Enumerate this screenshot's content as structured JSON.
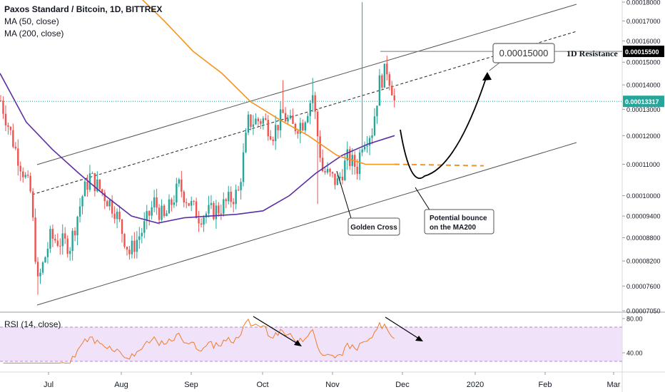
{
  "header": {
    "title": "Paxos Standard / Bitcoin, 1D, BITTREX",
    "indicators": [
      "MA (50, close)",
      "MA (200, close)"
    ]
  },
  "rsi_panel": {
    "label": "RSI (14, close)",
    "upper_band": 70,
    "lower_band": 30,
    "tick_labels": [
      "80.00",
      "40.00"
    ]
  },
  "colors": {
    "up_candle": "#26a69a",
    "down_candle": "#ef5350",
    "ma50": "#5b2ea6",
    "ma200": "#f7931a",
    "channel": "#555555",
    "rsi_line": "#f07b28",
    "rsi_band_fill": "#ecdcf7",
    "current_price_line": "#26a69a"
  },
  "annotations": {
    "target_box": "0.00015000",
    "resistance": "1D Resistance",
    "golden_cross": "Golden Cross",
    "bounce_line1": "Potential bounce",
    "bounce_line2": "on the MA200"
  },
  "chart_data": {
    "type": "candlestick",
    "title": "Paxos Standard / Bitcoin, 1D, BITTREX",
    "x_tick_labels": [
      "Jul",
      "Aug",
      "Sep",
      "Oct",
      "Nov",
      "Dec",
      "2020",
      "Feb",
      "Mar"
    ],
    "y_tick_labels": [
      "0.00018000",
      "0.00017000",
      "0.00016000",
      "0.00015000",
      "0.00014000",
      "0.00013000",
      "0.00012000",
      "0.00011000",
      "0.00010000",
      "0.00009400",
      "0.00008800",
      "0.00008200",
      "0.00007600",
      "0.00007050"
    ],
    "y_scale": "log",
    "ylim": [
      7.05e-05,
      0.00018
    ],
    "price_labels": {
      "resistance": "0.00015500",
      "current": "0.00013317"
    },
    "key_levels": {
      "resistance": 0.000155,
      "current": 0.00013317,
      "target": 0.00015
    },
    "series": [
      {
        "name": "MA (50, close)",
        "approx_values": [
          0.000145,
          0.000125,
          0.000115,
          0.000107,
          0.0001,
          9.4e-05,
          9.2e-05,
          9.35e-05,
          9.4e-05,
          9.45e-05,
          9.55e-05,
          0.0001,
          0.000107,
          0.000113,
          0.000117,
          0.00012
        ]
      },
      {
        "name": "MA (200, close)",
        "approx_values": [
          0.000185,
          0.00017,
          0.000155,
          0.000145,
          0.000133,
          0.000126,
          0.00012,
          0.000113,
          0.00011,
          0.00011
        ]
      }
    ]
  }
}
